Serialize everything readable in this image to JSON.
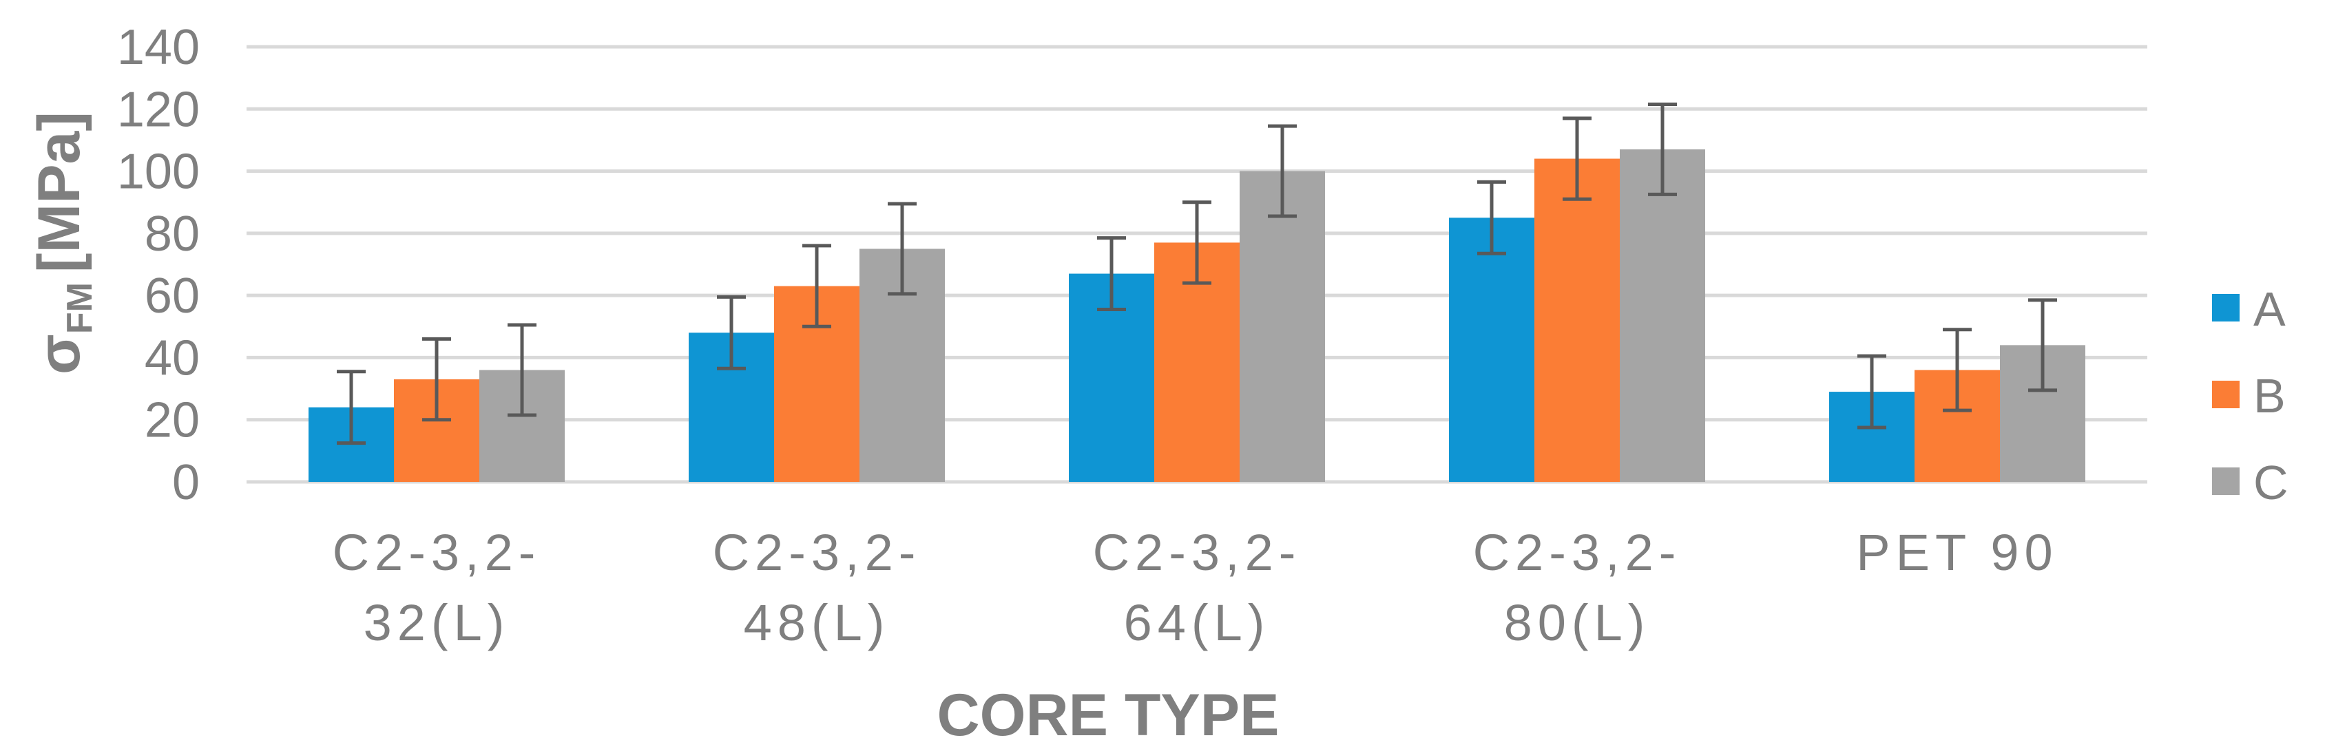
{
  "chart_data": {
    "type": "bar",
    "xlabel": "CORE TYPE",
    "ylabel_main": "σ",
    "ylabel_sub": "FM",
    "ylabel_unit": "[MPa]",
    "ylim": [
      0,
      140
    ],
    "yticks": [
      "0",
      "20",
      "40",
      "60",
      "80",
      "100",
      "120",
      "140"
    ],
    "grid": true,
    "legend_position": "right",
    "categories": [
      [
        "C2-3,2-",
        "32(L)"
      ],
      [
        "C2-3,2-",
        "48(L)"
      ],
      [
        "C2-3,2-",
        "64(L)"
      ],
      [
        "C2-3,2-",
        "80(L)"
      ],
      [
        "PET 90"
      ]
    ],
    "series": [
      {
        "name": "A",
        "color": "#0f95d3",
        "values": [
          24,
          48,
          67,
          85,
          29
        ],
        "errors": [
          11.5,
          11.5,
          11.5,
          11.5,
          11.5
        ]
      },
      {
        "name": "B",
        "color": "#fb7d35",
        "values": [
          33,
          63,
          77,
          104,
          36
        ],
        "errors": [
          13,
          13,
          13,
          13,
          13
        ]
      },
      {
        "name": "C",
        "color": "#a5a5a5",
        "values": [
          36,
          75,
          100,
          107,
          44
        ],
        "errors": [
          14.5,
          14.5,
          14.5,
          14.5,
          14.5
        ]
      }
    ]
  }
}
